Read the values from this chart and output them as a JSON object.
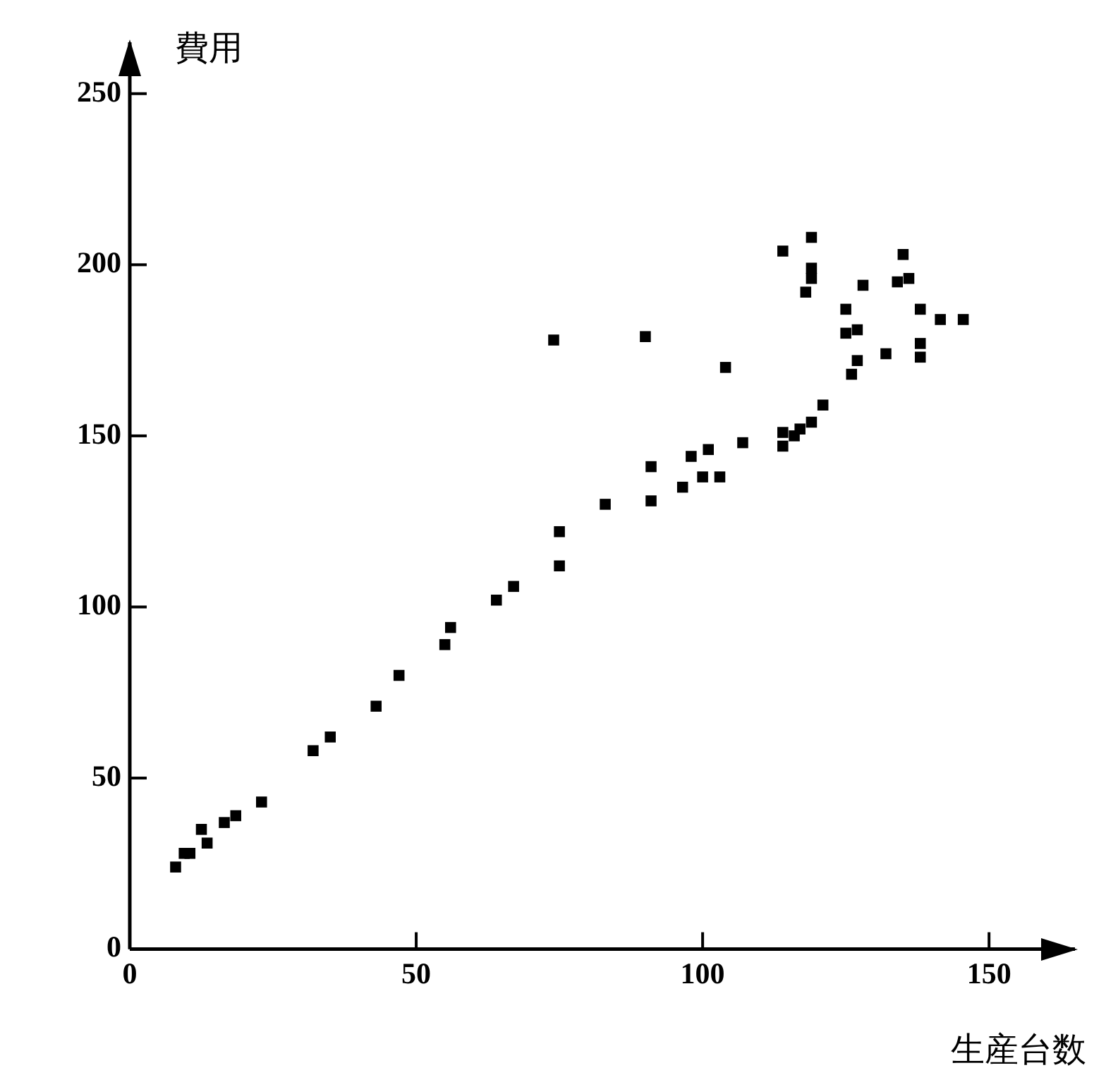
{
  "chart_data": {
    "type": "scatter",
    "xlabel": "生産台数",
    "ylabel": "費用",
    "marker": "square",
    "grid": false,
    "legend": false,
    "xlim": [
      0,
      165
    ],
    "ylim": [
      0,
      265
    ],
    "xticks": [
      0,
      50,
      100,
      150
    ],
    "yticks": [
      0,
      50,
      100,
      150,
      200,
      250
    ],
    "series": [
      {
        "color": "#000000",
        "x": [
          8,
          9.5,
          10.5,
          12.5,
          13.5,
          16.5,
          18.5,
          23,
          32,
          35,
          43,
          47,
          55,
          56,
          64,
          67,
          74,
          75,
          75,
          83,
          90,
          91,
          91,
          96.5,
          98,
          100,
          101,
          103,
          104,
          107,
          114,
          114,
          114,
          116,
          117,
          118,
          119,
          119,
          119,
          119,
          121,
          125,
          125,
          126,
          127,
          127,
          128,
          132,
          134,
          135,
          136,
          138,
          138,
          138,
          141.5,
          145.5
        ],
        "values": [
          24,
          28,
          28,
          35,
          31,
          37,
          39,
          43,
          58,
          62,
          71,
          80,
          89,
          94,
          102,
          106,
          178,
          122,
          112,
          130,
          179,
          131,
          141,
          135,
          144,
          138,
          146,
          138,
          170,
          148,
          204,
          147,
          151,
          150,
          152,
          192,
          208,
          199,
          196,
          154,
          159,
          187,
          180,
          168,
          181,
          172,
          194,
          174,
          195,
          203,
          196,
          187,
          177,
          173,
          184,
          184
        ]
      }
    ]
  }
}
